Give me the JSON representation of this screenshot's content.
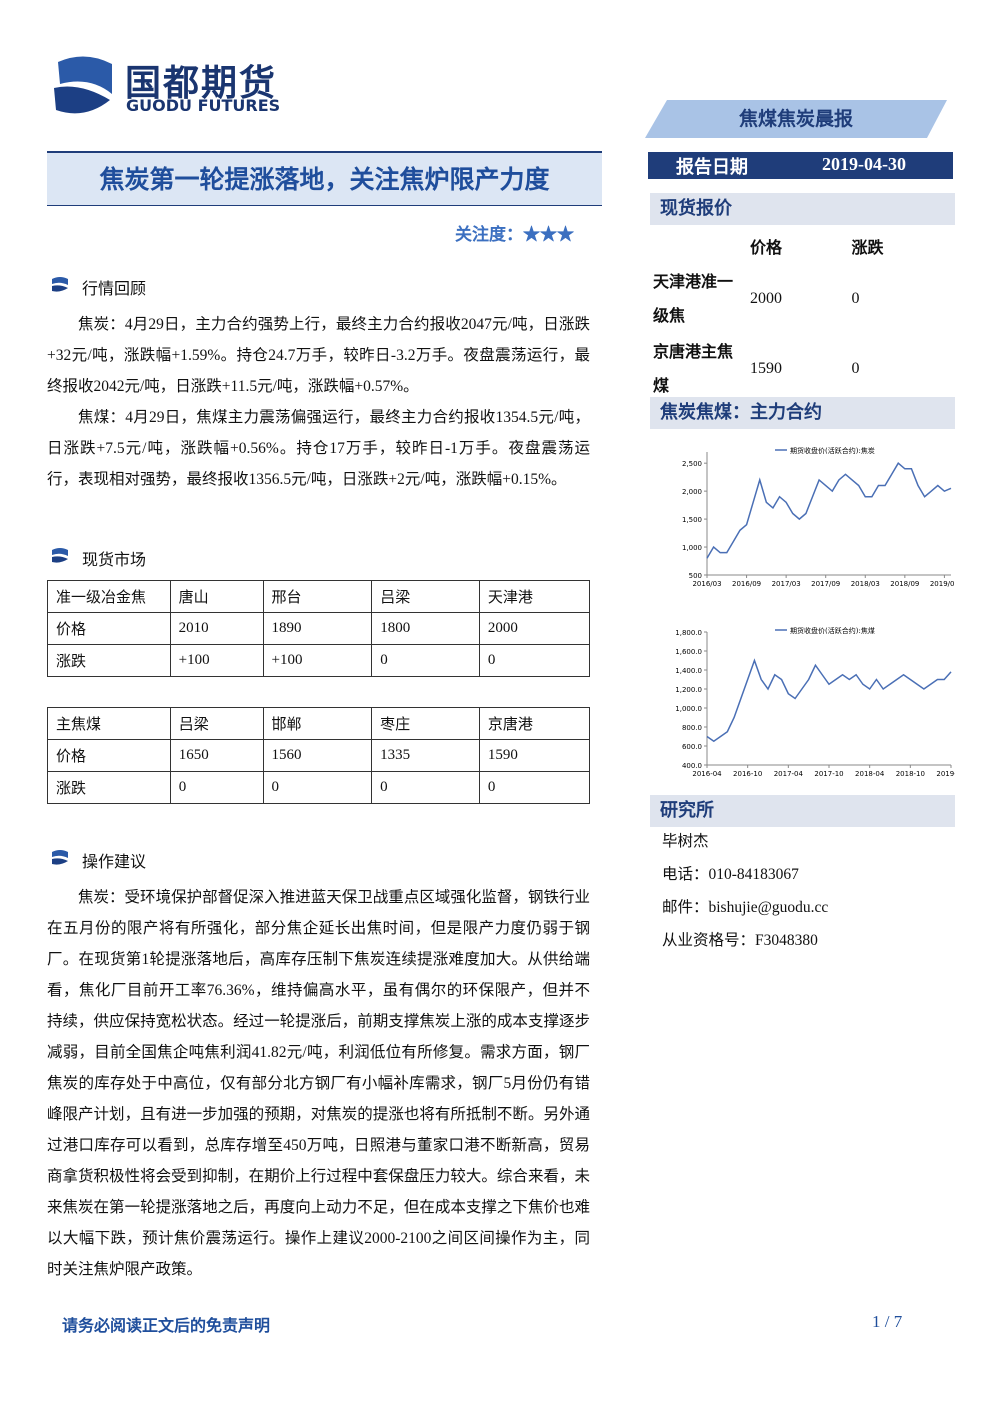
{
  "header": {
    "logo_cn": "国都期货",
    "logo_en": "GUODU FUTURES",
    "report_type": "焦煤焦炭晨报",
    "date_label": "报告日期",
    "date": "2019-04-30"
  },
  "title": "焦炭第一轮提涨落地，关注焦炉限产力度",
  "attention": "关注度：★★★",
  "sections": [
    {
      "heading": "行情回顾",
      "paragraphs": [
        "焦炭：4月29日，主力合约强势上行，最终主力合约报收2047元/吨，日涨跌+32元/吨，涨跌幅+1.59%。持仓24.7万手，较昨日-3.2万手。夜盘震荡运行，最终报收2042元/吨，日涨跌+11.5元/吨，涨跌幅+0.57%。",
        "焦煤：4月29日，焦煤主力震荡偏强运行，最终主力合约报收1354.5元/吨，日涨跌+7.5元/吨，涨跌幅+0.56%。持仓17万手，较昨日-1万手。夜盘震荡运行，表现相对强势，最终报收1356.5元/吨，日涨跌+2元/吨，涨跌幅+0.15%。"
      ]
    },
    {
      "heading": "现货市场",
      "tables": [
        {
          "rows": [
            [
              "准一级冶金焦",
              "唐山",
              "邢台",
              "吕梁",
              "天津港"
            ],
            [
              "价格",
              "2010",
              "1890",
              "1800",
              "2000"
            ],
            [
              "涨跌",
              "+100",
              "+100",
              "0",
              "0"
            ]
          ]
        },
        {
          "rows": [
            [
              "主焦煤",
              "吕梁",
              "邯郸",
              "枣庄",
              "京唐港"
            ],
            [
              "价格",
              "1650",
              "1560",
              "1335",
              "1590"
            ],
            [
              "涨跌",
              "0",
              "0",
              "0",
              "0"
            ]
          ]
        }
      ]
    },
    {
      "heading": "操作建议",
      "paragraphs": [
        "焦炭：受环境保护部督促深入推进蓝天保卫战重点区域强化监督，钢铁行业在五月份的限产将有所强化，部分焦企延长出焦时间，但是限产力度仍弱于钢厂。在现货第1轮提涨落地后，高库存压制下焦炭连续提涨难度加大。从供给端看，焦化厂目前开工率76.36%，维持偏高水平，虽有偶尔的环保限产，但并不持续，供应保持宽松状态。经过一轮提涨后，前期支撑焦炭上涨的成本支撑逐步减弱，目前全国焦企吨焦利润41.82元/吨，利润低位有所修复。需求方面，钢厂焦炭的库存处于中高位，仅有部分北方钢厂有小幅补库需求，钢厂5月份仍有错峰限产计划，且有进一步加强的预期，对焦炭的提涨也将有所抵制不断。另外通过港口库存可以看到，总库存增至450万吨，日照港与董家口港不断新高，贸易商拿货积极性将会受到抑制，在期价上行过程中套保盘压力较大。综合来看，未来焦炭在第一轮提涨落地之后，再度向上动力不足，但在成本支撑之下焦价也难以大幅下跌，预计焦价震荡运行。操作上建议2000-2100之间区间操作为主，同时关注焦炉限产政策。"
      ]
    }
  ],
  "sidebar": {
    "spot_heading": "现货报价",
    "spot_header": [
      "价格",
      "涨跌"
    ],
    "spot_rows": [
      [
        "天津港准一级焦",
        "2000",
        "0"
      ],
      [
        "京唐港主焦煤",
        "1590",
        "0"
      ]
    ],
    "chart_heading": "焦炭焦煤：主力合约",
    "research_heading": "研究所",
    "contacts": [
      "毕树杰",
      "电话：010-84183067",
      "邮件：bishujie@guodu.cc",
      "从业资格号：F3048380"
    ]
  },
  "charts": [
    {
      "type": "line",
      "x": [
        "2016/03",
        "2016/04",
        "2016/05",
        "2016/06",
        "2016/07",
        "2016/08",
        "2016/09",
        "2016/10",
        "2016/11",
        "2016/12",
        "2017/01",
        "2017/02",
        "2017/03",
        "2017/04",
        "2017/05",
        "2017/06",
        "2017/07",
        "2017/08",
        "2017/09",
        "2017/10",
        "2017/11",
        "2017/12",
        "2018/01",
        "2018/02",
        "2018/03",
        "2018/04",
        "2018/05",
        "2018/06",
        "2018/07",
        "2018/08",
        "2018/09",
        "2018/10",
        "2018/11",
        "2018/12",
        "2019/01",
        "2019/02",
        "2019/03",
        "2019/04"
      ],
      "series": [
        {
          "name": "期货收盘价(活跃合约):焦炭",
          "color": "#4a6fb5",
          "values": [
            800,
            1000,
            900,
            900,
            1100,
            1300,
            1400,
            1800,
            2200,
            1800,
            1700,
            1900,
            1800,
            1600,
            1500,
            1600,
            1900,
            2200,
            2100,
            2000,
            2200,
            2300,
            2200,
            2100,
            1900,
            1900,
            2100,
            2100,
            2300,
            2500,
            2400,
            2400,
            2100,
            1900,
            2000,
            2100,
            2000,
            2050
          ]
        }
      ],
      "ylim": [
        500,
        2700
      ],
      "yticks": [
        500,
        {
          "value": 1000,
          "label": "1,000"
        },
        {
          "value": 1500,
          "label": "1,500"
        },
        {
          "value": 2000,
          "label": "2,000"
        },
        {
          "value": 2500,
          "label": "2,500"
        }
      ],
      "xticks": [
        "2016/03",
        "2016/09",
        "2017/03",
        "2017/09",
        "2018/03",
        "2018/09",
        "2019/03"
      ]
    },
    {
      "type": "line",
      "x": [
        "2016-04",
        "2016-05",
        "2016-06",
        "2016-07",
        "2016-08",
        "2016-09",
        "2016-10",
        "2016-11",
        "2016-12",
        "2017-01",
        "2017-02",
        "2017-03",
        "2017-04",
        "2017-05",
        "2017-06",
        "2017-07",
        "2017-08",
        "2017-09",
        "2017-10",
        "2017-11",
        "2017-12",
        "2018-01",
        "2018-02",
        "2018-03",
        "2018-04",
        "2018-05",
        "2018-06",
        "2018-07",
        "2018-08",
        "2018-09",
        "2018-10",
        "2018-11",
        "2018-12",
        "2019-01",
        "2019-02",
        "2019-03",
        "2019-04"
      ],
      "series": [
        {
          "name": "期货收盘价(活跃合约):焦煤",
          "color": "#4a6fb5",
          "values": [
            700,
            650,
            700,
            750,
            900,
            1100,
            1300,
            1500,
            1300,
            1200,
            1350,
            1300,
            1150,
            1100,
            1200,
            1300,
            1450,
            1350,
            1250,
            1300,
            1350,
            1300,
            1350,
            1250,
            1200,
            1300,
            1200,
            1250,
            1300,
            1350,
            1300,
            1250,
            1200,
            1250,
            1300,
            1300,
            1380
          ]
        }
      ],
      "ylim": [
        400,
        1800
      ],
      "yticks": [
        {
          "value": 400,
          "label": "400.0"
        },
        {
          "value": 600,
          "label": "600.0"
        },
        {
          "value": 800,
          "label": "800.0"
        },
        {
          "value": 1000,
          "label": "1,000.0"
        },
        {
          "value": 1200,
          "label": "1,200.0"
        },
        {
          "value": 1400,
          "label": "1,400.0"
        },
        {
          "value": 1600,
          "label": "1,600.0"
        },
        {
          "value": 1800,
          "label": "1,800.0"
        }
      ],
      "xticks": [
        "2016-04",
        "2016-10",
        "2017-04",
        "2017-10",
        "2018-04",
        "2018-10",
        "2019-04"
      ]
    }
  ],
  "footer": {
    "disclaimer": "请务必阅读正文后的免责声明",
    "page": "1 / 7"
  }
}
